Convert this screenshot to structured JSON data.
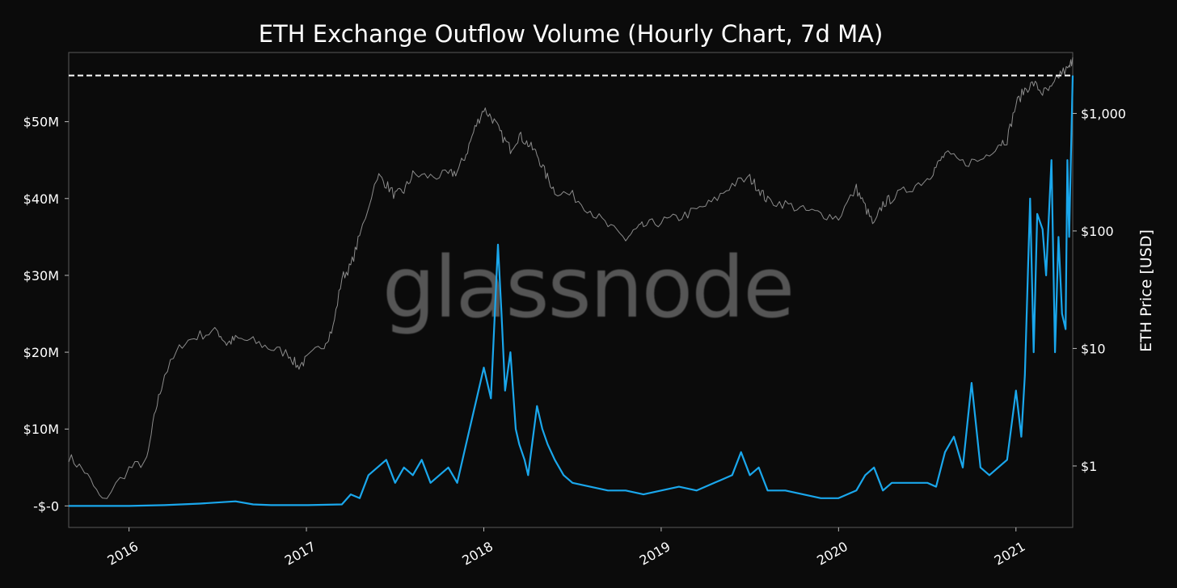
{
  "chart_data": {
    "type": "line",
    "title": "ETH Exchange Outflow Volume (Hourly Chart, 7d MA)",
    "watermark": "glassnode",
    "xlabel": "",
    "ylabel_left": "",
    "ylabel_right": "ETH Price [USD]",
    "x_tick_labels": [
      "2016",
      "2017",
      "2018",
      "2019",
      "2020",
      "2021"
    ],
    "x_tick_positions": [
      2016.0,
      2017.0,
      2018.0,
      2019.0,
      2020.0,
      2021.0
    ],
    "xlim": [
      2015.66,
      2021.32
    ],
    "y_left_ticks": [
      {
        "value": 0,
        "label": "-$-0"
      },
      {
        "value": 10,
        "label": "$10M"
      },
      {
        "value": 20,
        "label": "$20M"
      },
      {
        "value": 30,
        "label": "$30M"
      },
      {
        "value": 40,
        "label": "$40M"
      },
      {
        "value": 50,
        "label": "$50M"
      }
    ],
    "y_left_lim": [
      -2.8,
      59
    ],
    "y_left_unit": "USD millions",
    "y_right_ticks": [
      {
        "value": 1,
        "label": "$1"
      },
      {
        "value": 10,
        "label": "$10"
      },
      {
        "value": 100,
        "label": "$100"
      },
      {
        "value": 1000,
        "label": "$1,000"
      }
    ],
    "y_right_lim": [
      0.3,
      3300
    ],
    "y_right_scale": "log",
    "ath_line_value_musd": 56,
    "grid": false,
    "series": [
      {
        "axis": "left",
        "color": "#1aa7ec",
        "x": [
          2015.66,
          2015.8,
          2016.0,
          2016.2,
          2016.4,
          2016.6,
          2016.7,
          2016.8,
          2017.0,
          2017.2,
          2017.25,
          2017.3,
          2017.35,
          2017.4,
          2017.45,
          2017.5,
          2017.55,
          2017.6,
          2017.65,
          2017.7,
          2017.75,
          2017.8,
          2017.85,
          2017.9,
          2017.95,
          2018.0,
          2018.04,
          2018.08,
          2018.1,
          2018.12,
          2018.15,
          2018.18,
          2018.2,
          2018.23,
          2018.25,
          2018.3,
          2018.33,
          2018.36,
          2018.4,
          2018.45,
          2018.5,
          2018.6,
          2018.7,
          2018.8,
          2018.9,
          2019.0,
          2019.1,
          2019.2,
          2019.3,
          2019.4,
          2019.45,
          2019.5,
          2019.55,
          2019.6,
          2019.7,
          2019.8,
          2019.9,
          2020.0,
          2020.1,
          2020.15,
          2020.2,
          2020.25,
          2020.3,
          2020.4,
          2020.5,
          2020.55,
          2020.6,
          2020.65,
          2020.7,
          2020.75,
          2020.8,
          2020.85,
          2020.9,
          2020.95,
          2021.0,
          2021.03,
          2021.05,
          2021.08,
          2021.1,
          2021.12,
          2021.15,
          2021.17,
          2021.2,
          2021.22,
          2021.24,
          2021.26,
          2021.28,
          2021.29,
          2021.3,
          2021.32
        ],
        "values": [
          0,
          0,
          0,
          0.1,
          0.3,
          0.6,
          0.2,
          0.1,
          0.1,
          0.2,
          1.5,
          1,
          4,
          5,
          6,
          3,
          5,
          4,
          6,
          3,
          4,
          5,
          3,
          8,
          13,
          18,
          14,
          34,
          25,
          15,
          20,
          10,
          8,
          6,
          4,
          13,
          10,
          8,
          6,
          4,
          3,
          2.5,
          2,
          2,
          1.5,
          2,
          2.5,
          2,
          3,
          4,
          7,
          4,
          5,
          2,
          2,
          1.5,
          1,
          1,
          2,
          4,
          5,
          2,
          3,
          3,
          3,
          2.5,
          7,
          9,
          5,
          16,
          5,
          4,
          5,
          6,
          15,
          9,
          17,
          40,
          20,
          38,
          36,
          30,
          45,
          20,
          35,
          25,
          23,
          45,
          35,
          56
        ]
      },
      {
        "axis": "right",
        "color": "#8c8c8c",
        "x": [
          2015.66,
          2015.75,
          2015.85,
          2016.0,
          2016.1,
          2016.15,
          2016.2,
          2016.3,
          2016.4,
          2016.5,
          2016.55,
          2016.6,
          2016.7,
          2016.8,
          2016.9,
          2016.95,
          2017.0,
          2017.1,
          2017.15,
          2017.2,
          2017.25,
          2017.3,
          2017.4,
          2017.45,
          2017.5,
          2017.55,
          2017.6,
          2017.7,
          2017.8,
          2017.85,
          2017.9,
          2017.95,
          2018.0,
          2018.05,
          2018.1,
          2018.15,
          2018.2,
          2018.25,
          2018.3,
          2018.35,
          2018.4,
          2018.5,
          2018.6,
          2018.7,
          2018.8,
          2018.85,
          2018.9,
          2019.0,
          2019.1,
          2019.2,
          2019.3,
          2019.4,
          2019.5,
          2019.55,
          2019.6,
          2019.7,
          2019.8,
          2019.9,
          2020.0,
          2020.1,
          2020.15,
          2020.2,
          2020.25,
          2020.3,
          2020.4,
          2020.5,
          2020.55,
          2020.6,
          2020.7,
          2020.8,
          2020.9,
          2020.95,
          2021.0,
          2021.05,
          2021.1,
          2021.15,
          2021.2,
          2021.25,
          2021.3,
          2021.32
        ],
        "values": [
          1.2,
          0.9,
          0.5,
          0.95,
          1.1,
          3,
          6,
          11,
          13,
          14,
          11,
          12,
          11.5,
          10,
          9,
          7,
          8,
          11,
          15,
          40,
          50,
          90,
          300,
          250,
          200,
          220,
          300,
          290,
          300,
          320,
          450,
          750,
          1100,
          900,
          650,
          500,
          650,
          550,
          450,
          300,
          220,
          200,
          150,
          110,
          85,
          100,
          110,
          120,
          130,
          150,
          180,
          250,
          280,
          230,
          180,
          170,
          150,
          140,
          130,
          230,
          160,
          110,
          170,
          190,
          230,
          280,
          350,
          450,
          380,
          400,
          550,
          600,
          1200,
          1600,
          1800,
          1500,
          1600,
          2200,
          2400,
          3000
        ]
      }
    ]
  }
}
